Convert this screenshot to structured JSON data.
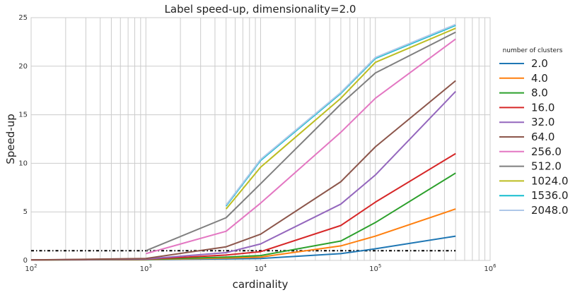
{
  "chart_data": {
    "type": "line",
    "title": "Label speed-up, dimensionality=2.0",
    "xlabel": "cardinality",
    "ylabel": "Speed-up",
    "xscale": "log",
    "xlim": [
      100,
      1000000
    ],
    "ylim": [
      0,
      25
    ],
    "grid": true,
    "legend": {
      "title": "number of clusters",
      "placement": "outside-right"
    },
    "x_tick_labels": [
      {
        "value": 100,
        "base": "10",
        "exp": "2"
      },
      {
        "value": 1000,
        "base": "10",
        "exp": "3"
      },
      {
        "value": 10000,
        "base": "10",
        "exp": "4"
      },
      {
        "value": 100000,
        "base": "10",
        "exp": "5"
      },
      {
        "value": 1000000,
        "base": "10",
        "exp": "6"
      }
    ],
    "y_ticks": [
      {
        "value": 0,
        "label": "0"
      },
      {
        "value": 5,
        "label": "5"
      },
      {
        "value": 10,
        "label": "10"
      },
      {
        "value": 15,
        "label": "15"
      },
      {
        "value": 20,
        "label": "20"
      },
      {
        "value": 25,
        "label": "25"
      }
    ],
    "reference_line": {
      "y": 1,
      "x_range": [
        100,
        500000
      ],
      "style": "dash-dot",
      "color": "#000000"
    },
    "series": [
      {
        "name": "2.0",
        "color": "#1f77b4",
        "x": [
          100,
          1000,
          5000,
          10000,
          50000,
          100000,
          500000
        ],
        "y": [
          0.05,
          0.1,
          0.15,
          0.2,
          0.7,
          1.2,
          2.5
        ]
      },
      {
        "name": "4.0",
        "color": "#ff7f0e",
        "x": [
          100,
          1000,
          5000,
          10000,
          50000,
          100000,
          500000
        ],
        "y": [
          0.05,
          0.1,
          0.25,
          0.35,
          1.5,
          2.5,
          5.3
        ]
      },
      {
        "name": "8.0",
        "color": "#2ca02c",
        "x": [
          100,
          1000,
          5000,
          10000,
          50000,
          100000,
          500000
        ],
        "y": [
          0.05,
          0.1,
          0.35,
          0.5,
          2.0,
          3.9,
          9.0
        ]
      },
      {
        "name": "16.0",
        "color": "#d62728",
        "x": [
          100,
          1000,
          5000,
          10000,
          50000,
          100000,
          500000
        ],
        "y": [
          0.05,
          0.12,
          0.55,
          0.9,
          3.6,
          6.0,
          11.0
        ]
      },
      {
        "name": "32.0",
        "color": "#9467bd",
        "x": [
          100,
          1000,
          5000,
          10000,
          50000,
          100000,
          500000
        ],
        "y": [
          0.05,
          0.15,
          0.8,
          1.7,
          5.8,
          8.8,
          17.4
        ]
      },
      {
        "name": "64.0",
        "color": "#8c564b",
        "x": [
          100,
          1000,
          5000,
          10000,
          50000,
          100000,
          500000
        ],
        "y": [
          0.05,
          0.2,
          1.4,
          2.7,
          8.1,
          11.7,
          18.5
        ]
      },
      {
        "name": "256.0",
        "color": "#e377c2",
        "x": [
          1000,
          5000,
          10000,
          50000,
          100000,
          500000
        ],
        "y": [
          0.7,
          3.0,
          5.9,
          13.2,
          16.7,
          22.8
        ]
      },
      {
        "name": "512.0",
        "color": "#7f7f7f",
        "x": [
          1000,
          5000,
          10000,
          50000,
          100000,
          500000
        ],
        "y": [
          1.0,
          4.4,
          7.9,
          16.1,
          19.3,
          23.5
        ]
      },
      {
        "name": "1024.0",
        "color": "#bcbd22",
        "x": [
          5000,
          10000,
          50000,
          100000,
          500000
        ],
        "y": [
          5.3,
          9.6,
          16.7,
          20.4,
          23.9
        ]
      },
      {
        "name": "1536.0",
        "color": "#17becf",
        "x": [
          5000,
          10000,
          50000,
          100000,
          500000
        ],
        "y": [
          5.6,
          10.3,
          17.2,
          20.8,
          24.2
        ]
      },
      {
        "name": "2048.0",
        "color": "#aec7e8",
        "x": [
          5000,
          10000,
          50000,
          100000,
          500000
        ],
        "y": [
          5.7,
          10.4,
          17.3,
          20.9,
          24.3
        ]
      }
    ]
  }
}
